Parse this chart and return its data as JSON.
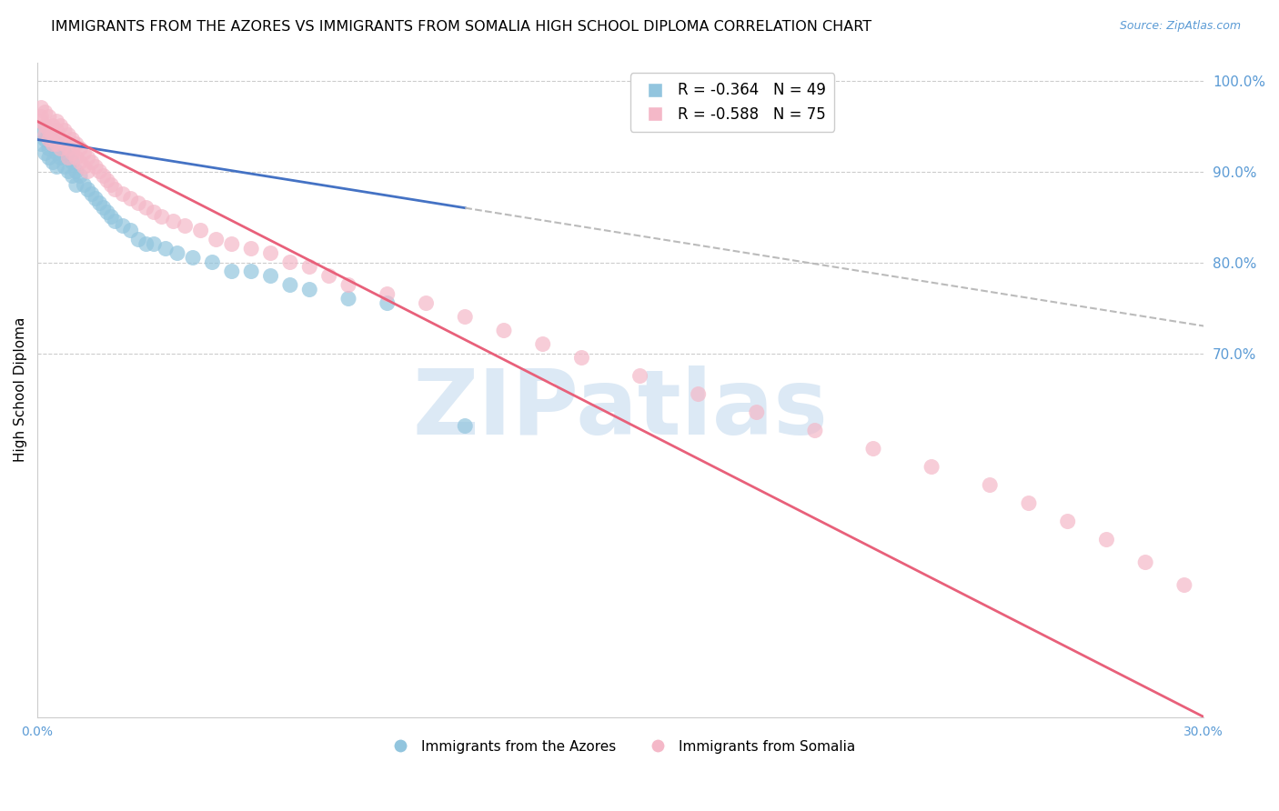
{
  "title": "IMMIGRANTS FROM THE AZORES VS IMMIGRANTS FROM SOMALIA HIGH SCHOOL DIPLOMA CORRELATION CHART",
  "source": "Source: ZipAtlas.com",
  "ylabel": "High School Diploma",
  "watermark": "ZIPatlas",
  "legend_line1": "R = -0.364   N = 49",
  "legend_line2": "R = -0.588   N = 75",
  "bottom_legend": [
    "Immigrants from the Azores",
    "Immigrants from Somalia"
  ],
  "azores_x": [
    0.001,
    0.001,
    0.002,
    0.002,
    0.003,
    0.003,
    0.003,
    0.004,
    0.004,
    0.005,
    0.005,
    0.005,
    0.006,
    0.006,
    0.007,
    0.007,
    0.008,
    0.008,
    0.009,
    0.009,
    0.01,
    0.01,
    0.011,
    0.012,
    0.013,
    0.014,
    0.015,
    0.016,
    0.017,
    0.018,
    0.019,
    0.02,
    0.022,
    0.024,
    0.026,
    0.028,
    0.03,
    0.033,
    0.036,
    0.04,
    0.045,
    0.05,
    0.055,
    0.06,
    0.065,
    0.07,
    0.08,
    0.09,
    0.11
  ],
  "azores_y": [
    0.93,
    0.945,
    0.92,
    0.935,
    0.94,
    0.925,
    0.915,
    0.93,
    0.91,
    0.935,
    0.92,
    0.905,
    0.93,
    0.915,
    0.92,
    0.905,
    0.915,
    0.9,
    0.91,
    0.895,
    0.9,
    0.885,
    0.895,
    0.885,
    0.88,
    0.875,
    0.87,
    0.865,
    0.86,
    0.855,
    0.85,
    0.845,
    0.84,
    0.835,
    0.825,
    0.82,
    0.82,
    0.815,
    0.81,
    0.805,
    0.8,
    0.79,
    0.79,
    0.785,
    0.775,
    0.77,
    0.76,
    0.755,
    0.62
  ],
  "somalia_x": [
    0.001,
    0.001,
    0.001,
    0.002,
    0.002,
    0.002,
    0.003,
    0.003,
    0.003,
    0.004,
    0.004,
    0.004,
    0.005,
    0.005,
    0.005,
    0.006,
    0.006,
    0.006,
    0.007,
    0.007,
    0.008,
    0.008,
    0.008,
    0.009,
    0.009,
    0.01,
    0.01,
    0.011,
    0.011,
    0.012,
    0.012,
    0.013,
    0.013,
    0.014,
    0.015,
    0.016,
    0.017,
    0.018,
    0.019,
    0.02,
    0.022,
    0.024,
    0.026,
    0.028,
    0.03,
    0.032,
    0.035,
    0.038,
    0.042,
    0.046,
    0.05,
    0.055,
    0.06,
    0.065,
    0.07,
    0.075,
    0.08,
    0.09,
    0.1,
    0.11,
    0.12,
    0.13,
    0.14,
    0.155,
    0.17,
    0.185,
    0.2,
    0.215,
    0.23,
    0.245,
    0.255,
    0.265,
    0.275,
    0.285,
    0.295
  ],
  "somalia_y": [
    0.97,
    0.96,
    0.955,
    0.965,
    0.95,
    0.94,
    0.96,
    0.945,
    0.935,
    0.95,
    0.94,
    0.93,
    0.955,
    0.945,
    0.93,
    0.95,
    0.935,
    0.925,
    0.945,
    0.93,
    0.94,
    0.925,
    0.915,
    0.935,
    0.92,
    0.93,
    0.915,
    0.925,
    0.91,
    0.92,
    0.905,
    0.915,
    0.9,
    0.91,
    0.905,
    0.9,
    0.895,
    0.89,
    0.885,
    0.88,
    0.875,
    0.87,
    0.865,
    0.86,
    0.855,
    0.85,
    0.845,
    0.84,
    0.835,
    0.825,
    0.82,
    0.815,
    0.81,
    0.8,
    0.795,
    0.785,
    0.775,
    0.765,
    0.755,
    0.74,
    0.725,
    0.71,
    0.695,
    0.675,
    0.655,
    0.635,
    0.615,
    0.595,
    0.575,
    0.555,
    0.535,
    0.515,
    0.495,
    0.47,
    0.445
  ],
  "azores_line_x0": 0.0,
  "azores_line_x1": 0.3,
  "azores_line_y0": 0.935,
  "azores_line_y1": 0.73,
  "somalia_line_x0": 0.0,
  "somalia_line_x1": 0.3,
  "somalia_line_y0": 0.955,
  "somalia_line_y1": 0.3,
  "xmin": 0.0,
  "xmax": 0.3,
  "ymin": 0.3,
  "ymax": 1.02,
  "right_yticks": [
    1.0,
    0.9,
    0.8,
    0.7
  ],
  "right_ytick_labels": [
    "100.0%",
    "90.0%",
    "80.0%",
    "70.0%"
  ],
  "azores_color": "#92c5de",
  "somalia_color": "#f4b8c8",
  "azores_line_color": "#4472c4",
  "somalia_line_color": "#e8607a",
  "dash_color": "#bbbbbb",
  "axis_color": "#5b9bd5",
  "grid_color": "#cccccc",
  "title_fontsize": 11.5,
  "source_fontsize": 9,
  "ylabel_fontsize": 11,
  "watermark_color": "#dce9f5",
  "watermark_fontsize": 72
}
